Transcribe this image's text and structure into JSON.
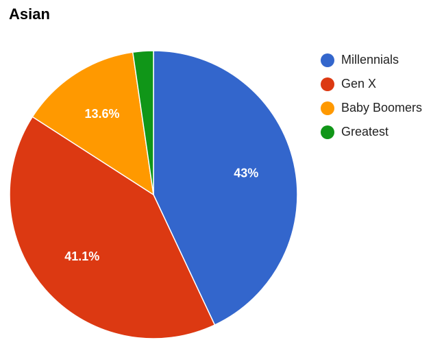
{
  "chart_data": {
    "type": "pie",
    "title": "Asian",
    "legend_position": "right",
    "slices": [
      {
        "name": "Millennials",
        "value": 43.0,
        "label": "43%",
        "color": "#3366cc"
      },
      {
        "name": "Gen X",
        "value": 41.1,
        "label": "41.1%",
        "color": "#dc3912"
      },
      {
        "name": "Baby Boomers",
        "value": 13.6,
        "label": "13.6%",
        "color": "#ff9900"
      },
      {
        "name": "Greatest",
        "value": 2.3,
        "label": "",
        "color": "#109618"
      }
    ]
  }
}
